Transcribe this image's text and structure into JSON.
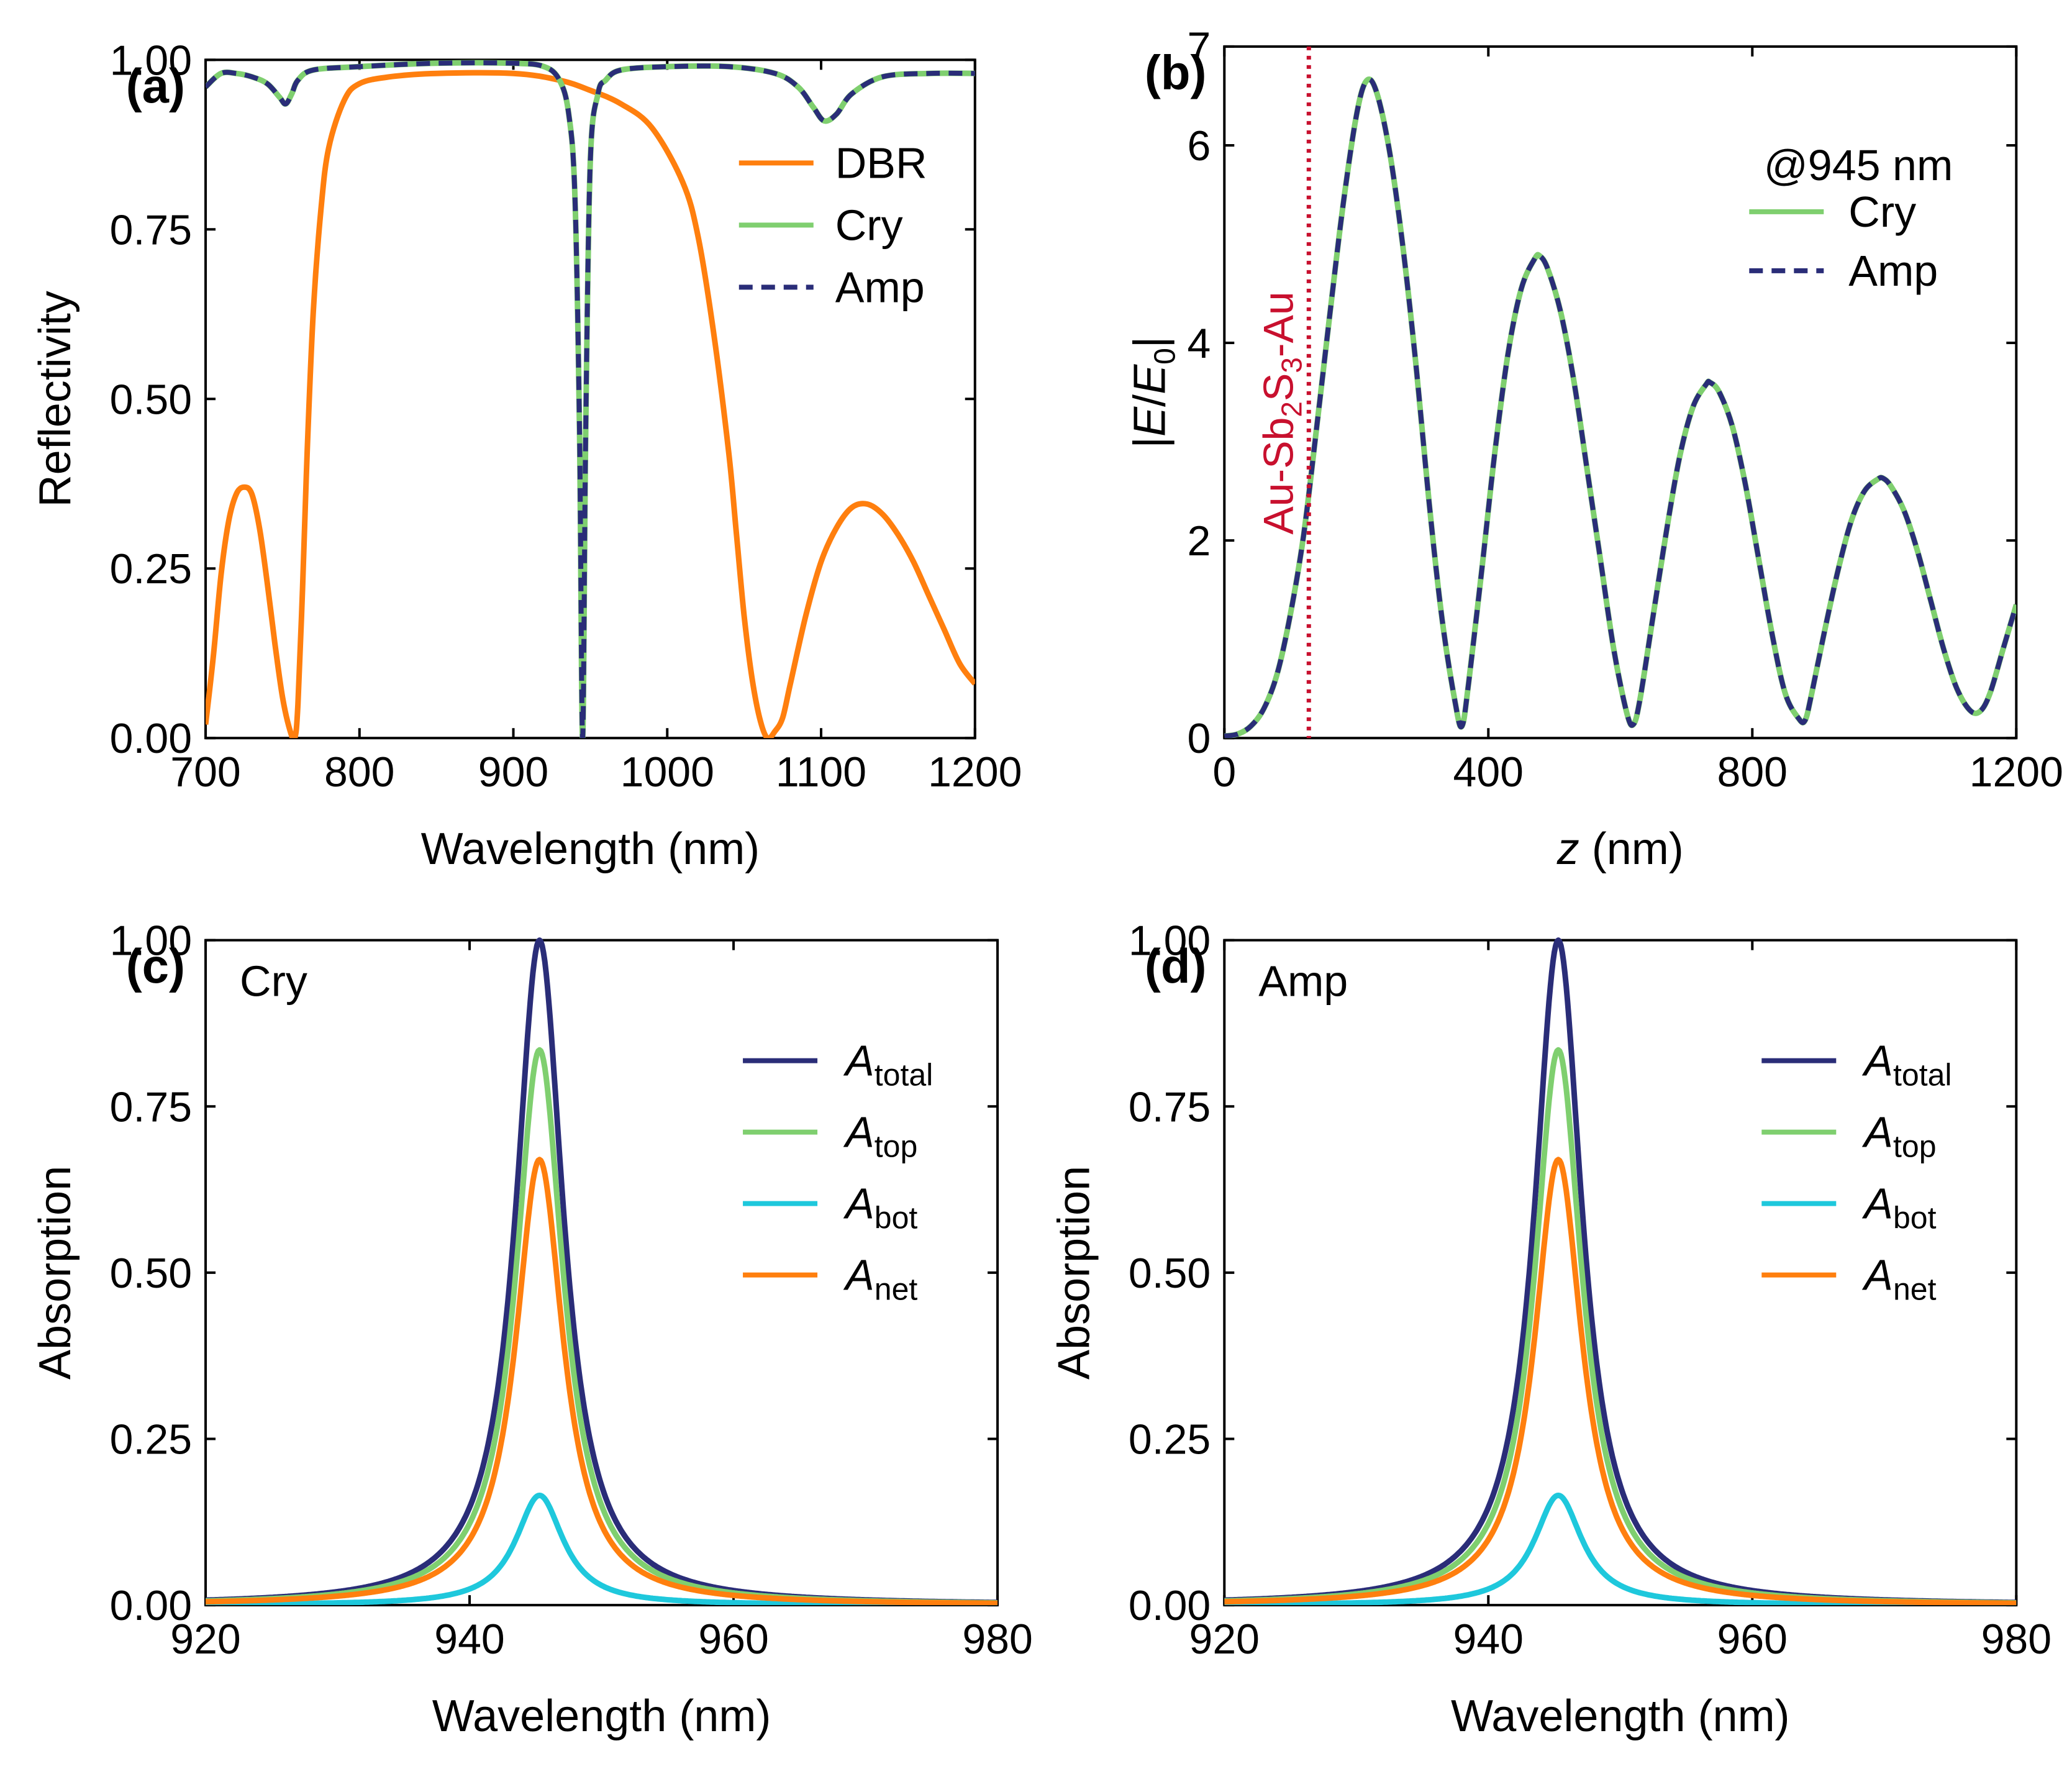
{
  "colors": {
    "dbr": "#ff7f0e",
    "cry": "#7fcf6f",
    "amp": "#2a2d78",
    "bot": "#1ec8dc",
    "marker": "#c8102e",
    "axis": "#000000"
  },
  "chart_data": [
    {
      "panel_label": "(a)",
      "type": "line",
      "xlabel": "Wavelength (nm)",
      "ylabel": "Reflectivity",
      "xlim": [
        700,
        1200
      ],
      "ylim": [
        0,
        1
      ],
      "xticks": [
        "700",
        "800",
        "900",
        "1000",
        "1100",
        "1200"
      ],
      "yticks": [
        "0.00",
        "0.25",
        "0.50",
        "0.75",
        "1.00"
      ],
      "legend_position": "upper-right",
      "series": [
        {
          "name": "DBR",
          "color_key": "dbr",
          "style": "solid",
          "x": [
            700,
            705,
            710,
            715,
            720,
            725,
            730,
            735,
            740,
            745,
            750,
            755,
            758,
            760,
            763,
            766,
            770,
            775,
            780,
            790,
            800,
            820,
            850,
            900,
            930,
            950,
            970,
            990,
            1010,
            1020,
            1030,
            1040,
            1045,
            1050,
            1055,
            1060,
            1065,
            1070,
            1075,
            1080,
            1090,
            1100,
            1110,
            1120,
            1130,
            1140,
            1150,
            1160,
            1170,
            1180,
            1190,
            1200
          ],
          "y": [
            0.02,
            0.12,
            0.24,
            0.32,
            0.36,
            0.37,
            0.36,
            0.31,
            0.23,
            0.14,
            0.06,
            0.01,
            0.0,
            0.05,
            0.22,
            0.42,
            0.63,
            0.78,
            0.87,
            0.94,
            0.965,
            0.975,
            0.98,
            0.98,
            0.97,
            0.955,
            0.935,
            0.9,
            0.82,
            0.74,
            0.6,
            0.42,
            0.3,
            0.18,
            0.09,
            0.03,
            0.0,
            0.01,
            0.03,
            0.08,
            0.18,
            0.26,
            0.31,
            0.34,
            0.345,
            0.33,
            0.3,
            0.26,
            0.21,
            0.16,
            0.11,
            0.08
          ]
        },
        {
          "name": "Cry",
          "color_key": "cry",
          "style": "solid",
          "x": [
            700,
            710,
            720,
            730,
            740,
            748,
            752,
            756,
            760,
            770,
            800,
            850,
            900,
            920,
            930,
            936,
            940,
            943,
            945,
            947,
            950,
            955,
            960,
            970,
            1000,
            1040,
            1070,
            1085,
            1095,
            1102,
            1110,
            1120,
            1140,
            1170,
            1200
          ],
          "y": [
            0.96,
            0.98,
            0.98,
            0.975,
            0.965,
            0.945,
            0.935,
            0.95,
            0.97,
            0.985,
            0.99,
            0.995,
            0.995,
            0.99,
            0.97,
            0.92,
            0.8,
            0.45,
            0.0,
            0.45,
            0.85,
            0.95,
            0.97,
            0.985,
            0.99,
            0.99,
            0.98,
            0.96,
            0.93,
            0.91,
            0.92,
            0.95,
            0.975,
            0.98,
            0.98
          ]
        },
        {
          "name": "Amp",
          "color_key": "amp",
          "style": "dashed",
          "x": [
            700,
            710,
            720,
            730,
            740,
            748,
            752,
            756,
            760,
            770,
            800,
            850,
            900,
            920,
            930,
            936,
            940,
            943,
            945,
            947,
            950,
            955,
            960,
            970,
            1000,
            1040,
            1070,
            1085,
            1095,
            1102,
            1110,
            1120,
            1140,
            1170,
            1200
          ],
          "y": [
            0.96,
            0.98,
            0.98,
            0.975,
            0.965,
            0.945,
            0.935,
            0.95,
            0.97,
            0.985,
            0.99,
            0.995,
            0.995,
            0.99,
            0.97,
            0.92,
            0.8,
            0.45,
            0.0,
            0.45,
            0.85,
            0.95,
            0.97,
            0.985,
            0.99,
            0.99,
            0.98,
            0.96,
            0.93,
            0.91,
            0.92,
            0.95,
            0.975,
            0.98,
            0.98
          ]
        }
      ]
    },
    {
      "panel_label": "(b)",
      "type": "line",
      "xlabel_italic": "z",
      "xlabel_rest": " (nm)",
      "ylabel_prefix": "|",
      "ylabel_e": "E",
      "ylabel_slash": "/",
      "ylabel_e0": "E",
      "ylabel_sub": "0",
      "ylabel_suffix": "|",
      "xlim": [
        0,
        1200
      ],
      "ylim": [
        0,
        7
      ],
      "xticks": [
        "0",
        "400",
        "800",
        "1200"
      ],
      "yticks": [
        "0",
        "2",
        "4",
        "6",
        "7"
      ],
      "legend_title": "@945 nm",
      "legend_position": "upper-right",
      "interface_z": 128,
      "interface_label_parts": [
        "Au-Sb",
        "2",
        "S",
        "3",
        "-Au"
      ],
      "series": [
        {
          "name": "Cry",
          "color_key": "cry",
          "style": "solid",
          "x": [
            0,
            20,
            40,
            60,
            80,
            100,
            120,
            140,
            160,
            180,
            200,
            215,
            230,
            250,
            270,
            290,
            310,
            330,
            350,
            360,
            370,
            390,
            410,
            430,
            450,
            470,
            478,
            490,
            510,
            530,
            550,
            570,
            590,
            610,
            620,
            630,
            650,
            670,
            690,
            710,
            730,
            736,
            750,
            770,
            790,
            810,
            830,
            850,
            870,
            880,
            890,
            910,
            930,
            950,
            970,
            990,
            998,
            1010,
            1030,
            1050,
            1070,
            1090,
            1110,
            1130,
            1145,
            1160,
            1180,
            1200
          ],
          "y": [
            0.02,
            0.04,
            0.12,
            0.3,
            0.65,
            1.25,
            2.05,
            3.15,
            4.3,
            5.4,
            6.3,
            6.65,
            6.55,
            5.95,
            5.0,
            3.8,
            2.4,
            1.2,
            0.35,
            0.12,
            0.55,
            1.7,
            2.9,
            3.9,
            4.55,
            4.85,
            4.88,
            4.75,
            4.3,
            3.6,
            2.7,
            1.8,
            0.9,
            0.25,
            0.14,
            0.4,
            1.25,
            2.1,
            2.85,
            3.35,
            3.58,
            3.6,
            3.5,
            3.15,
            2.55,
            1.8,
            1.05,
            0.45,
            0.2,
            0.18,
            0.45,
            1.1,
            1.7,
            2.2,
            2.5,
            2.62,
            2.63,
            2.55,
            2.3,
            1.9,
            1.4,
            0.9,
            0.5,
            0.28,
            0.27,
            0.45,
            0.9,
            1.35
          ]
        },
        {
          "name": "Amp",
          "color_key": "amp",
          "style": "dashed",
          "x": [
            0,
            20,
            40,
            60,
            80,
            100,
            120,
            140,
            160,
            180,
            200,
            215,
            230,
            250,
            270,
            290,
            310,
            330,
            350,
            360,
            370,
            390,
            410,
            430,
            450,
            470,
            478,
            490,
            510,
            530,
            550,
            570,
            590,
            610,
            620,
            630,
            650,
            670,
            690,
            710,
            730,
            736,
            750,
            770,
            790,
            810,
            830,
            850,
            870,
            880,
            890,
            910,
            930,
            950,
            970,
            990,
            998,
            1010,
            1030,
            1050,
            1070,
            1090,
            1110,
            1130,
            1145,
            1160,
            1180,
            1200
          ],
          "y": [
            0.02,
            0.04,
            0.12,
            0.3,
            0.65,
            1.25,
            2.05,
            3.15,
            4.3,
            5.4,
            6.3,
            6.65,
            6.55,
            5.95,
            5.0,
            3.8,
            2.4,
            1.2,
            0.35,
            0.12,
            0.55,
            1.7,
            2.9,
            3.9,
            4.55,
            4.85,
            4.88,
            4.75,
            4.3,
            3.6,
            2.7,
            1.8,
            0.9,
            0.25,
            0.14,
            0.4,
            1.25,
            2.1,
            2.85,
            3.35,
            3.58,
            3.6,
            3.5,
            3.15,
            2.55,
            1.8,
            1.05,
            0.45,
            0.2,
            0.18,
            0.45,
            1.1,
            1.7,
            2.2,
            2.5,
            2.62,
            2.63,
            2.55,
            2.3,
            1.9,
            1.4,
            0.9,
            0.5,
            0.28,
            0.27,
            0.45,
            0.9,
            1.35
          ]
        }
      ]
    },
    {
      "panel_label": "(c)",
      "type": "line",
      "corner_label": "Cry",
      "xlabel": "Wavelength (nm)",
      "ylabel": "Absorption",
      "xlim": [
        920,
        980
      ],
      "ylim": [
        0,
        1
      ],
      "xticks": [
        "920",
        "940",
        "960",
        "980"
      ],
      "yticks": [
        "0.00",
        "0.25",
        "0.50",
        "0.75",
        "1.00"
      ],
      "legend_position": "upper-right",
      "peak_center": 945.3,
      "half_width": 2.2,
      "series": [
        {
          "name": "A",
          "sub": "total",
          "color_key": "amp",
          "peak": 1.0
        },
        {
          "name": "A",
          "sub": "top",
          "color_key": "cry",
          "peak": 0.835
        },
        {
          "name": "A",
          "sub": "bot",
          "color_key": "bot",
          "peak": 0.165
        },
        {
          "name": "A",
          "sub": "net",
          "color_key": "dbr",
          "peak": 0.67
        }
      ]
    },
    {
      "panel_label": "(d)",
      "type": "line",
      "corner_label": "Amp",
      "xlabel": "Wavelength (nm)",
      "ylabel": "Absorption",
      "xlim": [
        920,
        980
      ],
      "ylim": [
        0,
        1
      ],
      "xticks": [
        "920",
        "940",
        "960",
        "980"
      ],
      "yticks": [
        "0.00",
        "0.25",
        "0.50",
        "0.75",
        "1.00"
      ],
      "legend_position": "upper-right",
      "peak_center": 945.3,
      "half_width": 2.2,
      "series": [
        {
          "name": "A",
          "sub": "total",
          "color_key": "amp",
          "peak": 1.0
        },
        {
          "name": "A",
          "sub": "top",
          "color_key": "cry",
          "peak": 0.835
        },
        {
          "name": "A",
          "sub": "bot",
          "color_key": "bot",
          "peak": 0.165
        },
        {
          "name": "A",
          "sub": "net",
          "color_key": "dbr",
          "peak": 0.67
        }
      ]
    }
  ]
}
